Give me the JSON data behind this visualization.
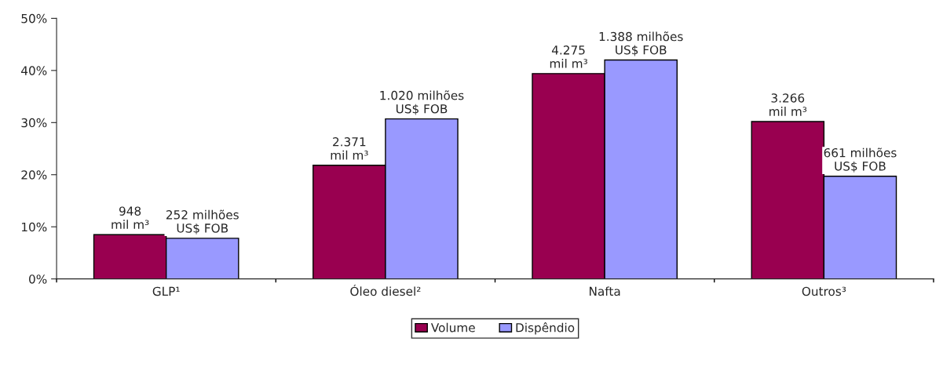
{
  "chart_data": {
    "type": "bar",
    "categories": [
      "GLP¹",
      "Óleo diesel²",
      "Nafta",
      "Outros³"
    ],
    "series": [
      {
        "name": "Volume",
        "color": "#990050",
        "values": [
          8.5,
          21.8,
          39.4,
          30.2
        ]
      },
      {
        "name": "Dispêndio",
        "color": "#9999ff",
        "values": [
          7.8,
          30.7,
          42.0,
          19.7
        ]
      }
    ],
    "annotations": [
      {
        "text": "948\nmil m³",
        "x": "GLP¹",
        "y": 8.5
      },
      {
        "text": "2.371\nmil m³",
        "x": "Óleo diesel²",
        "y": 21.8
      },
      {
        "text": "4.275\nmil m³",
        "x": "Nafta",
        "y": 39.4
      },
      {
        "text": "3.266\nmil m³",
        "x": "Outros³",
        "y": 30.2
      },
      {
        "text": "252 milhões\nUS$ FOB",
        "x": "GLP¹",
        "y": 7.8
      },
      {
        "text": "1.020 milhões\nUS$ FOB",
        "x": "Óleo diesel²",
        "y": 30.7
      },
      {
        "text": "1.388 milhões\nUS$ FOB",
        "x": "Nafta",
        "y": 42.0
      },
      {
        "text": "661 milhões\nUS$ FOB",
        "x": "Outros³",
        "y": 19.7
      }
    ],
    "ylim": [
      0,
      50
    ],
    "yticks": [
      {
        "value": 0,
        "label": "0%"
      },
      {
        "value": 10,
        "label": "10%"
      },
      {
        "value": 20,
        "label": "20%"
      },
      {
        "value": 30,
        "label": "30%"
      },
      {
        "value": 40,
        "label": "40%"
      },
      {
        "value": 50,
        "label": "50%"
      }
    ],
    "legend": "bottom",
    "grid": false
  }
}
